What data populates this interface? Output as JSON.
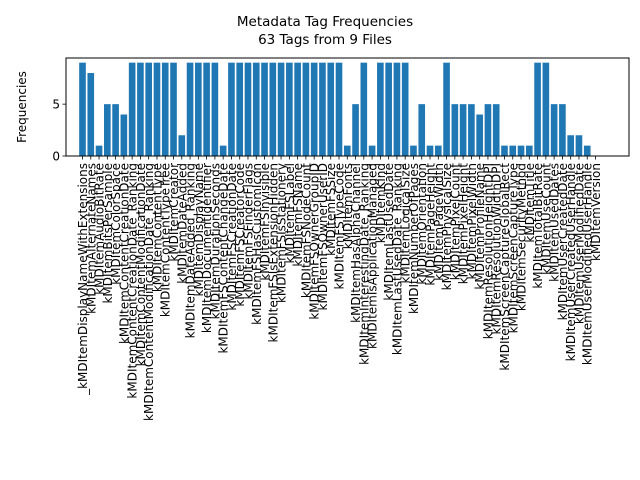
{
  "chart_data": {
    "type": "bar",
    "title": "Metadata Tag Frequencies",
    "subtitle": "63 Tags from 9 Files",
    "xlabel": "",
    "ylabel": "Frequencies",
    "ylim": [
      0,
      9.45
    ],
    "yticks": [
      0,
      5
    ],
    "grid": false,
    "bar_color": "#1f77b4",
    "categories": [
      "_kMDItemDisplayNameWithExtensions",
      "kMDItemAlternateNames",
      "kMDItemAudioBitRate",
      "kMDItemBitsPerSample",
      "kMDItemColorSpace",
      "kMDItemContentCreationDate",
      "kMDItemContentCreationDate_Ranking",
      "kMDItemContentModificationDate",
      "kMDItemContentModificationDate_Ranking",
      "kMDItemContentType",
      "kMDItemContentTypeTree",
      "kMDItemCreator",
      "kMDItemDateAdded",
      "kMDItemDateAdded_Ranking",
      "kMDItemDisplayName",
      "kMDItemDocumentIdentifier",
      "kMDItemDurationSeconds",
      "kMDItemFSContentChangeDate",
      "kMDItemFSCreationDate",
      "kMDItemFSCreatorCode",
      "kMDItemFSFinderFlags",
      "kMDItemFSHasCustomIcon",
      "kMDItemFSInvisible",
      "kMDItemFSIsExtensionHidden",
      "kMDItemFSIsStationery",
      "kMDItemFSLabel",
      "kMDItemFSName",
      "kMDItemFSNodeCount",
      "kMDItemFSOwnerGroupID",
      "kMDItemFSOwnerUserID",
      "kMDItemFSSize",
      "kMDItemFSTypeCode",
      "kMDItemFonts",
      "kMDItemHasAlphaChannel",
      "kMDItemInterestingDate_Ranking",
      "kMDItemIsApplicationManaged",
      "kMDItemKind",
      "kMDItemLastUsedDate",
      "kMDItemLastUsedDate_Ranking",
      "kMDItemLogicalSize",
      "kMDItemNumberOfPages",
      "kMDItemOrientation",
      "kMDItemPageHeight",
      "kMDItemPageWidth",
      "kMDItemPhysicalSize",
      "kMDItemPixelCount",
      "kMDItemPixelHeight",
      "kMDItemPixelWidth",
      "kMDItemProfileName",
      "kMDItemResolutionHeightDPI",
      "kMDItemResolutionWidthDPI",
      "kMDItemScreenCaptureGlobalRect",
      "kMDItemScreenCaptureType",
      "kMDItemSecurityMethod",
      "kMDItemTitle",
      "kMDItemTotalBitRate",
      "kMDItemUseCount",
      "kMDItemUsedDates",
      "kMDItemUserCreatedDate",
      "kMDItemUserCreatedUserHandle",
      "kMDItemUserModifiedDate",
      "kMDItemUserModifiedUserHandle",
      "kMDItemVersion"
    ],
    "values": [
      9,
      8,
      1,
      5,
      5,
      4,
      9,
      9,
      9,
      9,
      9,
      9,
      2,
      9,
      9,
      9,
      9,
      1,
      9,
      9,
      9,
      9,
      9,
      9,
      9,
      9,
      9,
      9,
      9,
      9,
      9,
      9,
      1,
      5,
      9,
      1,
      9,
      9,
      9,
      9,
      1,
      5,
      1,
      1,
      9,
      5,
      5,
      5,
      4,
      5,
      5,
      1,
      1,
      1,
      1,
      9,
      9,
      5,
      5,
      2,
      2,
      1,
      0
    ]
  }
}
